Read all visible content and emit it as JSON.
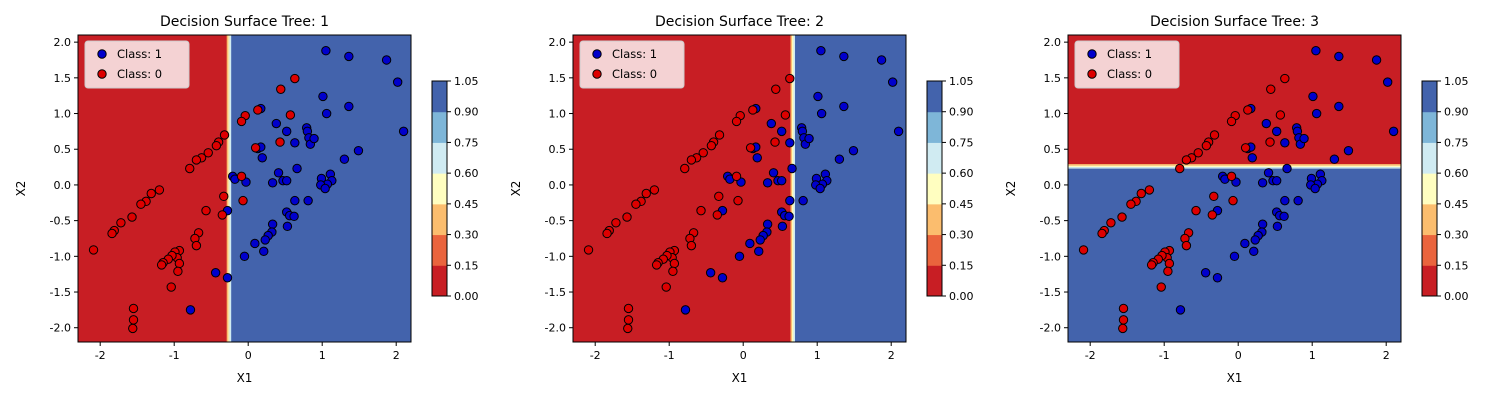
{
  "colors": {
    "class_1": "#0000cc",
    "class_0": "#dd0000",
    "marker_edge": "#000000",
    "colorbar_bands": [
      "#c81e24",
      "#ea643d",
      "#fbbd6e",
      "#fffec0",
      "#d0ebf2",
      "#7eb6d8",
      "#4363ac"
    ]
  },
  "chart_data": [
    {
      "type": "scatter",
      "title": "Decision Surface Tree: 1",
      "xlabel": "X1",
      "ylabel": "X2",
      "xlim": [
        -2.3,
        2.2
      ],
      "ylim": [
        -2.2,
        2.1
      ],
      "xticks": [
        -2,
        -1,
        0,
        1,
        2
      ],
      "yticks": [
        -2.0,
        -1.5,
        -1.0,
        -0.5,
        0.0,
        0.5,
        1.0,
        1.5,
        2.0
      ],
      "decision_boundary": {
        "feature": "X1",
        "threshold": -0.25,
        "below": "Class: 0",
        "above": "Class: 1"
      },
      "legend": {
        "location": "upper-left",
        "entries": [
          "Class: 1",
          "Class: 0"
        ]
      },
      "colorbar": {
        "ticks": [
          "0.00",
          "0.15",
          "0.30",
          "0.45",
          "0.60",
          "0.75",
          "0.90",
          "1.05"
        ]
      }
    },
    {
      "type": "scatter",
      "title": "Decision Surface Tree: 2",
      "xlabel": "X1",
      "ylabel": "X2",
      "xlim": [
        -2.3,
        2.2
      ],
      "ylim": [
        -2.2,
        2.1
      ],
      "xticks": [
        -2,
        -1,
        0,
        1,
        2
      ],
      "yticks": [
        -2.0,
        -1.5,
        -1.0,
        -0.5,
        0.0,
        0.5,
        1.0,
        1.5,
        2.0
      ],
      "decision_boundary": {
        "feature": "X1",
        "threshold": 0.68,
        "below": "Class: 0",
        "above": "Class: 1"
      },
      "legend": {
        "location": "upper-left",
        "entries": [
          "Class: 1",
          "Class: 0"
        ]
      },
      "colorbar": {
        "ticks": [
          "0.00",
          "0.15",
          "0.30",
          "0.45",
          "0.60",
          "0.75",
          "0.90",
          "1.05"
        ]
      }
    },
    {
      "type": "scatter",
      "title": "Decision Surface Tree: 3",
      "xlabel": "X1",
      "ylabel": "X2",
      "xlim": [
        -2.3,
        2.2
      ],
      "ylim": [
        -2.2,
        2.1
      ],
      "xticks": [
        -2,
        -1,
        0,
        1,
        2
      ],
      "yticks": [
        -2.0,
        -1.5,
        -1.0,
        -0.5,
        0.0,
        0.5,
        1.0,
        1.5,
        2.0
      ],
      "decision_boundary": {
        "feature": "X2",
        "threshold": 0.25,
        "below": "Class: 1",
        "above": "Class: 0"
      },
      "legend": {
        "location": "upper-left",
        "entries": [
          "Class: 1",
          "Class: 0"
        ]
      },
      "colorbar": {
        "ticks": [
          "0.00",
          "0.15",
          "0.30",
          "0.45",
          "0.60",
          "0.75",
          "0.90",
          "1.05"
        ]
      }
    }
  ],
  "points": {
    "class_1": [
      [
        1.05,
        1.88
      ],
      [
        1.36,
        1.8
      ],
      [
        1.87,
        1.75
      ],
      [
        2.02,
        1.44
      ],
      [
        2.1,
        0.75
      ],
      [
        1.01,
        1.24
      ],
      [
        1.36,
        1.1
      ],
      [
        1.06,
        1.0
      ],
      [
        0.17,
        1.07
      ],
      [
        0.38,
        0.86
      ],
      [
        0.52,
        0.75
      ],
      [
        0.79,
        0.8
      ],
      [
        0.8,
        0.75
      ],
      [
        0.63,
        0.59
      ],
      [
        0.82,
        0.66
      ],
      [
        0.84,
        0.57
      ],
      [
        0.89,
        0.65
      ],
      [
        1.49,
        0.48
      ],
      [
        1.3,
        0.36
      ],
      [
        0.13,
        0.51
      ],
      [
        0.19,
        0.38
      ],
      [
        0.17,
        0.53
      ],
      [
        0.41,
        0.17
      ],
      [
        0.47,
        0.06
      ],
      [
        0.52,
        0.06
      ],
      [
        0.66,
        0.23
      ],
      [
        0.99,
        0.09
      ],
      [
        1.11,
        0.15
      ],
      [
        1.13,
        0.06
      ],
      [
        1.07,
        0.01
      ],
      [
        0.98,
        0.0
      ],
      [
        1.04,
        -0.05
      ],
      [
        -0.21,
        0.12
      ],
      [
        -0.18,
        0.08
      ],
      [
        0.33,
        0.03
      ],
      [
        -0.03,
        0.04
      ],
      [
        0.63,
        -0.22
      ],
      [
        0.81,
        -0.22
      ],
      [
        0.52,
        -0.38
      ],
      [
        0.56,
        -0.43
      ],
      [
        0.62,
        -0.44
      ],
      [
        0.53,
        -0.58
      ],
      [
        0.33,
        -0.55
      ],
      [
        0.32,
        -0.66
      ],
      [
        0.27,
        -0.71
      ],
      [
        0.23,
        -0.77
      ],
      [
        0.09,
        -0.82
      ],
      [
        0.21,
        -0.93
      ],
      [
        -0.05,
        -1.0
      ],
      [
        -0.28,
        -0.36
      ],
      [
        -0.28,
        -1.3
      ],
      [
        -0.44,
        -1.23
      ],
      [
        -0.78,
        -1.75
      ]
    ],
    "class_0": [
      [
        0.63,
        1.49
      ],
      [
        0.44,
        1.34
      ],
      [
        0.13,
        1.05
      ],
      [
        0.57,
        0.98
      ],
      [
        -0.04,
        0.97
      ],
      [
        -0.09,
        0.89
      ],
      [
        0.43,
        0.6
      ],
      [
        0.1,
        0.52
      ],
      [
        -0.32,
        0.7
      ],
      [
        -0.4,
        0.6
      ],
      [
        -0.43,
        0.55
      ],
      [
        -0.54,
        0.45
      ],
      [
        -0.63,
        0.38
      ],
      [
        -0.7,
        0.35
      ],
      [
        -0.79,
        0.23
      ],
      [
        -1.2,
        -0.07
      ],
      [
        -1.31,
        -0.12
      ],
      [
        -1.38,
        -0.23
      ],
      [
        -1.45,
        -0.27
      ],
      [
        -1.57,
        -0.45
      ],
      [
        -1.72,
        -0.53
      ],
      [
        -1.81,
        -0.64
      ],
      [
        -1.84,
        -0.68
      ],
      [
        -2.09,
        -0.91
      ],
      [
        -0.09,
        0.12
      ],
      [
        -0.07,
        -0.22
      ],
      [
        -0.33,
        -0.16
      ],
      [
        -0.35,
        -0.42
      ],
      [
        -0.57,
        -0.36
      ],
      [
        -0.67,
        -0.67
      ],
      [
        -0.72,
        -0.75
      ],
      [
        -0.7,
        -0.85
      ],
      [
        -0.93,
        -0.92
      ],
      [
        -0.99,
        -0.94
      ],
      [
        -0.96,
        -1.02
      ],
      [
        -0.93,
        -1.1
      ],
      [
        -1.03,
        -0.99
      ],
      [
        -1.08,
        -1.04
      ],
      [
        -1.15,
        -1.09
      ],
      [
        -1.17,
        -1.12
      ],
      [
        -0.95,
        -1.21
      ],
      [
        -1.04,
        -1.43
      ],
      [
        -1.55,
        -1.73
      ],
      [
        -1.55,
        -1.89
      ],
      [
        -1.56,
        -2.01
      ]
    ]
  }
}
